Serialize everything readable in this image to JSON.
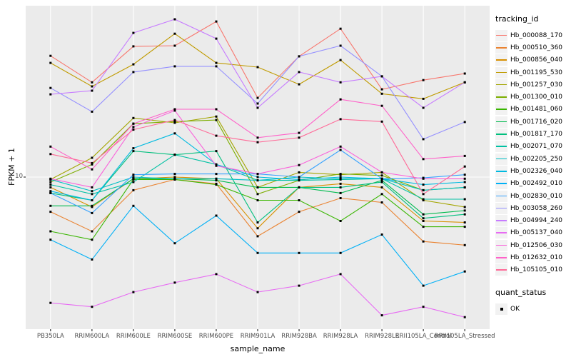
{
  "panel": {
    "bg_color": "#EBEBEB",
    "grid_color": "#FFFFFF",
    "tick_color": "#333333",
    "axis_text_color": "#4D4D4D",
    "point_color": "#000000"
  },
  "axes": {
    "x_title": "sample_name",
    "y_title": "FPKM + 1",
    "y_tick_label": "10"
  },
  "legend": {
    "tracking_title": "tracking_id",
    "quant_title": "quant_status",
    "quant_ok_label": "OK"
  },
  "chart_data": {
    "type": "line",
    "title": "",
    "xlabel": "sample_name",
    "ylabel": "FPKM + 1",
    "y_scale": "log10",
    "y_ticks": [
      10
    ],
    "ylim": [
      1.7,
      75
    ],
    "grid": "major",
    "legend_position": "right",
    "point_marker": "black-square (quant_status OK)",
    "categories": [
      "PB350LA",
      "RRIM600LA",
      "RRIM600LE",
      "RRIM600SE",
      "RRIM600PE",
      "RRIM901LA",
      "RRIM928BA",
      "RRIM928LA",
      "RRIM928LE",
      "RRII105LA_Control",
      "RRII105LA_Stressed"
    ],
    "series": [
      {
        "name": "Hb_000088_170",
        "color": "#F8766D",
        "values": [
          45.0,
          32.4,
          50.6,
          51.0,
          68.9,
          26.7,
          44.7,
          63.0,
          29.7,
          33.3,
          36.1
        ]
      },
      {
        "name": "Hb_000510_360",
        "color": "#EA8331",
        "values": [
          6.5,
          5.1,
          8.5,
          9.7,
          9.2,
          4.8,
          6.5,
          7.7,
          7.3,
          4.5,
          4.3
        ]
      },
      {
        "name": "Hb_000856_040",
        "color": "#D89000",
        "values": [
          8.8,
          6.9,
          9.8,
          10.0,
          9.8,
          5.3,
          8.8,
          9.2,
          8.8,
          5.8,
          5.7
        ]
      },
      {
        "name": "Hb_001195_530",
        "color": "#C09B00",
        "values": [
          41.2,
          30.8,
          40.5,
          59.2,
          41.2,
          39.1,
          31.6,
          42.7,
          28.1,
          26.4,
          32.4
        ]
      },
      {
        "name": "Hb_001257_030",
        "color": "#A3A500",
        "values": [
          9.7,
          12.7,
          20.8,
          19.6,
          21.2,
          8.8,
          10.6,
          10.3,
          10.6,
          7.5,
          6.9
        ]
      },
      {
        "name": "Hb_001300_010",
        "color": "#7CAE00",
        "values": [
          9.4,
          11.7,
          19.4,
          19.9,
          20.3,
          8.1,
          9.6,
          10.4,
          10.2,
          8.5,
          8.8
        ]
      },
      {
        "name": "Hb_001481_060",
        "color": "#39B600",
        "values": [
          5.1,
          4.6,
          9.7,
          9.7,
          9.1,
          7.5,
          7.5,
          5.8,
          8.1,
          5.4,
          5.4
        ]
      },
      {
        "name": "Hb_001716_020",
        "color": "#00BB4E",
        "values": [
          7.0,
          7.0,
          9.8,
          9.8,
          9.6,
          8.8,
          8.8,
          8.2,
          9.6,
          6.3,
          6.6
        ]
      },
      {
        "name": "Hb_001817_170",
        "color": "#00BF7D",
        "values": [
          8.2,
          7.5,
          13.8,
          13.2,
          13.8,
          5.7,
          8.8,
          8.8,
          9.4,
          6.0,
          6.3
        ]
      },
      {
        "name": "Hb_002071_070",
        "color": "#00C1A3",
        "values": [
          9.1,
          8.1,
          9.4,
          13.2,
          11.7,
          9.6,
          9.6,
          9.7,
          9.8,
          7.6,
          7.6
        ]
      },
      {
        "name": "Hb_002205_250",
        "color": "#00BFC4",
        "values": [
          9.7,
          8.4,
          10.0,
          9.8,
          9.8,
          9.6,
          10.0,
          9.8,
          9.8,
          8.5,
          8.8
        ]
      },
      {
        "name": "Hb_002326_040",
        "color": "#00BAE0",
        "values": [
          8.4,
          7.5,
          14.3,
          17.2,
          11.7,
          10.0,
          9.7,
          10.0,
          9.8,
          9.1,
          9.4
        ]
      },
      {
        "name": "Hb_002492_010",
        "color": "#00B0F6",
        "values": [
          4.6,
          3.6,
          7.0,
          4.4,
          6.2,
          3.9,
          3.9,
          3.9,
          4.9,
          2.6,
          3.1
        ]
      },
      {
        "name": "Hb_002830_010",
        "color": "#35A2FF",
        "values": [
          8.2,
          6.4,
          10.3,
          10.4,
          10.4,
          10.4,
          10.0,
          14.0,
          9.8,
          9.9,
          10.3
        ]
      },
      {
        "name": "Hb_003058_260",
        "color": "#9590FF",
        "values": [
          30.2,
          22.5,
          36.8,
          39.5,
          39.5,
          24.9,
          44.7,
          51.0,
          34.9,
          16.0,
          19.8
        ]
      },
      {
        "name": "Hb_004994_240",
        "color": "#C77CFF",
        "values": [
          27.9,
          29.2,
          59.8,
          70.8,
          55.7,
          23.6,
          36.8,
          32.4,
          34.9,
          23.6,
          32.4
        ]
      },
      {
        "name": "Hb_005137_040",
        "color": "#E76BF3",
        "values": [
          2.1,
          2.0,
          2.4,
          2.7,
          3.0,
          2.4,
          2.6,
          3.0,
          1.8,
          2.0,
          1.76
        ]
      },
      {
        "name": "Hb_012506_030",
        "color": "#FA62DB",
        "values": [
          9.8,
          8.8,
          18.6,
          22.8,
          11.5,
          10.4,
          11.6,
          14.6,
          10.6,
          9.8,
          9.8
        ]
      },
      {
        "name": "Hb_012632_010",
        "color": "#FF61C9",
        "values": [
          14.6,
          11.0,
          19.4,
          23.2,
          23.2,
          16.3,
          17.3,
          26.2,
          24.2,
          12.5,
          13.0
        ]
      },
      {
        "name": "Hb_105105_010",
        "color": "#FF6A98",
        "values": [
          13.3,
          11.9,
          18.0,
          20.3,
          16.7,
          15.4,
          16.3,
          20.5,
          19.9,
          8.1,
          11.4
        ]
      }
    ]
  }
}
